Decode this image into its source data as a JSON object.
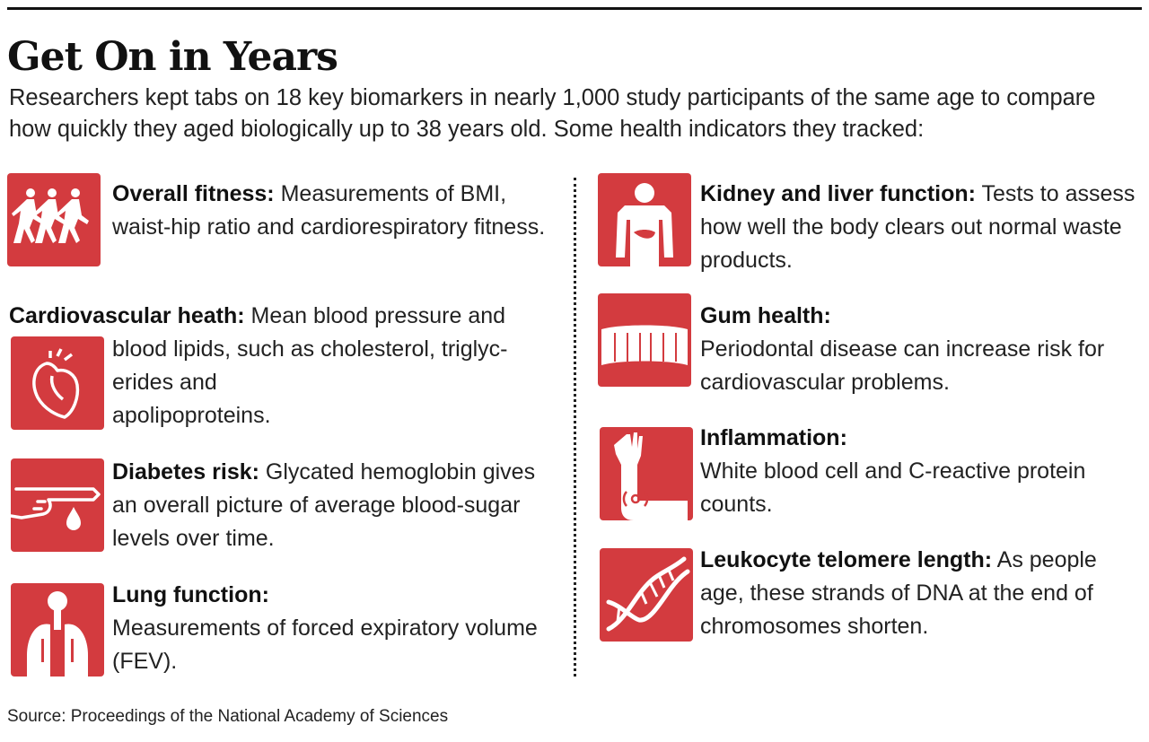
{
  "title": "Get On in Years",
  "intro": "Researchers kept tabs on 18 key biomarkers in nearly 1,000 study participants of the same age to compare how quickly they aged biologically up to 38 years old. Some health indicators they tracked:",
  "accent_color": "#d33b3f",
  "items": {
    "fitness": {
      "icon": "runners-icon",
      "label": "Overall fitness:",
      "text": " Measurements of BMI, waist-hip ratio and cardiorespiratory fitness."
    },
    "cardio": {
      "icon": "heart-icon",
      "label": "Cardiovascular heath:",
      "text1": " Mean blood pressure and",
      "text2": "blood lipids, such as cholesterol, triglyc-",
      "text3": "erides and",
      "text4": "apolipoproteins."
    },
    "diabetes": {
      "icon": "finger-prick-icon",
      "label": "Diabetes risk:",
      "text": " Glycated hemoglobin gives an overall picture of average blood-sugar levels over time."
    },
    "lung": {
      "icon": "lungs-icon",
      "label": "Lung function:",
      "text": "Measurements of forced expiratory volume (FEV)."
    },
    "kidney": {
      "icon": "torso-organs-icon",
      "label": "Kidney and liver function:",
      "text": " Tests to assess how well the body clears out normal waste products."
    },
    "gum": {
      "icon": "teeth-icon",
      "label": "Gum health:",
      "text": "Periodontal disease can increase risk for cardiovascular problems."
    },
    "inflammation": {
      "icon": "inflamed-arm-icon",
      "label": "Inflammation:",
      "text": "White blood cell and C-reactive protein counts."
    },
    "telomere": {
      "icon": "dna-icon",
      "label": "Leukocyte telomere length:",
      "text": " As people age, these strands of DNA at the end of chromosomes shorten."
    }
  },
  "source": "Source: Proceedings of the National Academy of Sciences"
}
